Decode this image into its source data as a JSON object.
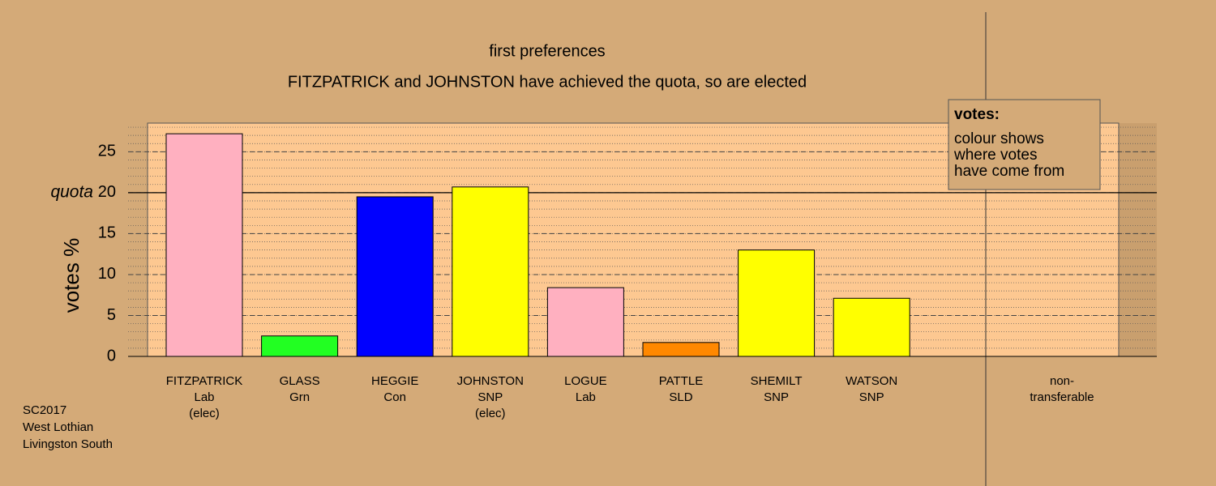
{
  "chart_data": {
    "type": "bar",
    "title": "first preferences",
    "subtitle": "FITZPATRICK and JOHNSTON have achieved the quota, so are elected",
    "y_label": "votes %",
    "categories": [
      [
        "FITZPATRICK",
        "Lab",
        "(elec)"
      ],
      [
        "GLASS",
        "Grn"
      ],
      [
        "HEGGIE",
        "Con"
      ],
      [
        "JOHNSTON",
        "SNP",
        "(elec)"
      ],
      [
        "LOGUE",
        "Lab"
      ],
      [
        "PATTLE",
        "SLD"
      ],
      [
        "SHEMILT",
        "SNP"
      ],
      [
        "WATSON",
        "SNP"
      ],
      [
        "non-",
        "transferable"
      ]
    ],
    "values": [
      27.2,
      2.5,
      19.5,
      20.7,
      8.4,
      1.7,
      13.0,
      7.1,
      0
    ],
    "colors": [
      "#ffb0c0",
      "#22ff22",
      "#0000ff",
      "#ffff00",
      "#ffb0c0",
      "#ff8800",
      "#ffff00",
      "#ffff00",
      "#ffffff"
    ],
    "ylim": [
      0,
      28.5
    ],
    "yticks": [
      0,
      5,
      10,
      15,
      20,
      25
    ],
    "quota": 20,
    "quota_label": "quota",
    "legend": {
      "title": "votes:",
      "lines": [
        "colour shows",
        "where votes",
        "have come from"
      ]
    },
    "footer": [
      "SC2017",
      "West Lothian",
      "Livingston South"
    ]
  }
}
